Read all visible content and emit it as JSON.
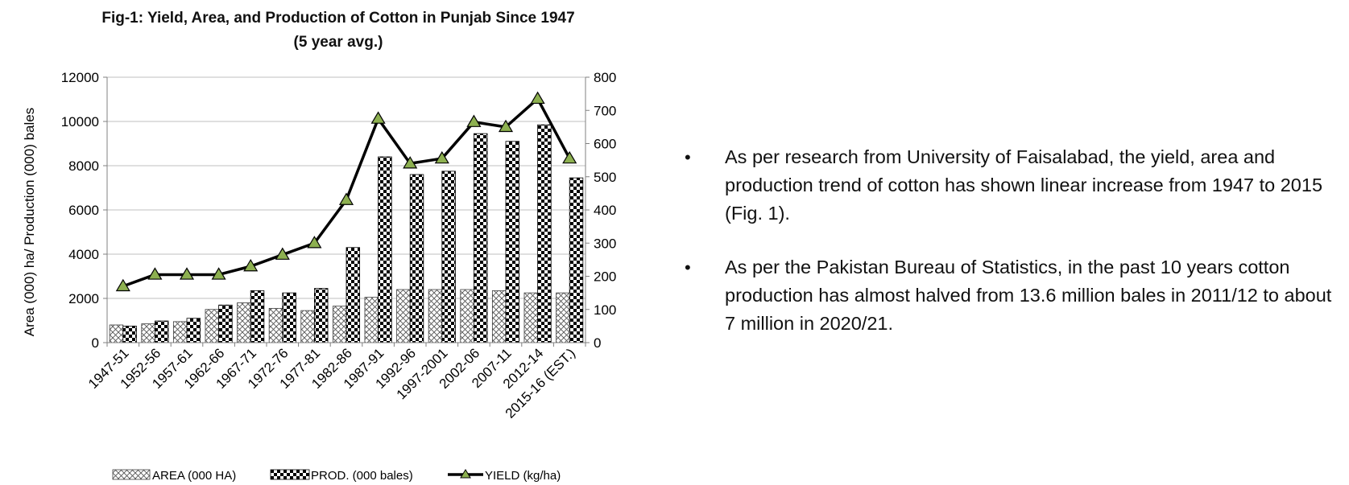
{
  "chart_data": {
    "type": "bar",
    "title": "Fig-1: Yield, Area, and Production of Cotton in Punjab Since 1947",
    "subtitle": "(5 year avg.)",
    "categories": [
      "1947-51",
      "1952-56",
      "1957-61",
      "1962-66",
      "1967-71",
      "1972-76",
      "1977-81",
      "1982-86",
      "1987-91",
      "1992-96",
      "1997-2001",
      "2002-06",
      "2007-11",
      "2012-14",
      "2015-16 (EST.)"
    ],
    "ylabel_left": "Area (000) ha/ Production (000) bales",
    "ylabel_right": "Yield (kg/ha)",
    "ylim_left": [
      0,
      12000
    ],
    "ylim_right": [
      0,
      800
    ],
    "yticks_left": [
      0,
      2000,
      4000,
      6000,
      8000,
      10000,
      12000
    ],
    "yticks_right": [
      0,
      100,
      200,
      300,
      400,
      500,
      600,
      700,
      800
    ],
    "grid": "horizontal",
    "legend_placement": "bottom",
    "series": [
      {
        "name": "AREA (000 HA)",
        "type": "bar",
        "axis": "left",
        "pattern": "crosshatch",
        "values": [
          800,
          850,
          950,
          1500,
          1800,
          1550,
          1450,
          1650,
          2050,
          2400,
          2400,
          2400,
          2350,
          2250,
          2250
        ]
      },
      {
        "name": "PROD. (000 bales)",
        "type": "bar",
        "axis": "left",
        "pattern": "checker",
        "values": [
          750,
          980,
          1100,
          1700,
          2350,
          2250,
          2450,
          4300,
          8400,
          7600,
          7750,
          9450,
          9100,
          9850,
          7450
        ]
      },
      {
        "name": "YIELD (kg/ha)",
        "type": "line",
        "axis": "right",
        "marker_color": "#8db050",
        "values": [
          170,
          205,
          205,
          205,
          230,
          265,
          300,
          430,
          675,
          540,
          555,
          665,
          650,
          735,
          555
        ]
      }
    ]
  },
  "bullets": [
    "As per research from University of Faisalabad, the yield, area and production trend of cotton has shown linear increase from 1947 to 2015 (Fig. 1).",
    "As per the Pakistan Bureau of Statistics, in the past 10 years cotton production has almost halved from 13.6 million bales in 2011/12 to about 7 million in 2020/21."
  ],
  "bullet_symbol": "•",
  "colors": {
    "line": "#000000",
    "marker": "#8db050",
    "grid": "#bfbfbf"
  }
}
